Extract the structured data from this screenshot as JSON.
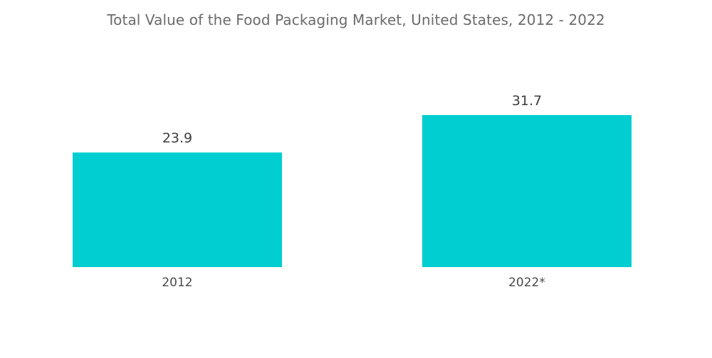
{
  "chart_data": {
    "type": "bar",
    "title": "Total Value of the Food Packaging Market, United States, 2012 - 2022",
    "categories": [
      "2012",
      "2022*"
    ],
    "values": [
      23.9,
      31.7
    ],
    "value_labels": [
      "23.9",
      "31.7"
    ],
    "xlabel": "",
    "ylabel": "",
    "ylim": [
      0,
      31.7
    ],
    "grid": false,
    "legend": "none",
    "bar_color": "#00ced1"
  }
}
